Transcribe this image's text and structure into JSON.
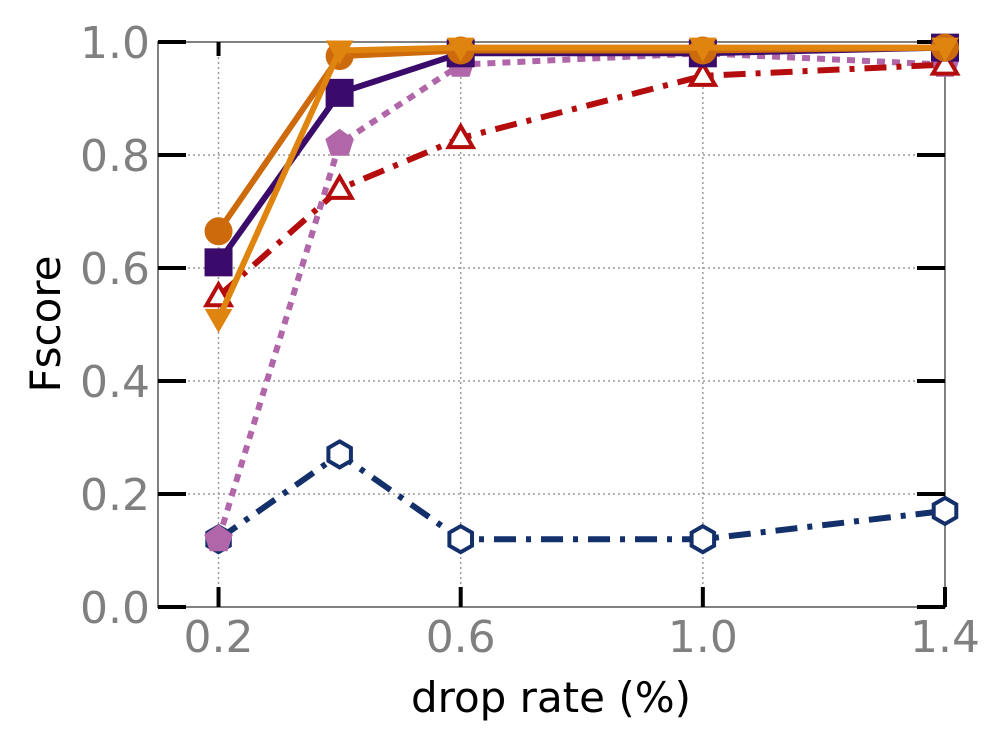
{
  "chart_data": {
    "type": "line",
    "title": "",
    "xlabel": "drop rate (%)",
    "ylabel": "Fscore",
    "xlim": [
      0.1,
      1.4
    ],
    "ylim": [
      0.0,
      1.0
    ],
    "xticks": [
      0.2,
      0.6,
      1.0,
      1.4
    ],
    "xtick_labels": [
      "0.2",
      "0.6",
      "1.0",
      "1.4"
    ],
    "yticks": [
      0.0,
      0.2,
      0.4,
      0.6,
      0.8,
      1.0
    ],
    "ytick_labels": [
      "0.0",
      "0.2",
      "0.4",
      "0.6",
      "0.8",
      "1.0"
    ],
    "grid": true,
    "legend": "none",
    "x": [
      0.2,
      0.4,
      0.6,
      1.0,
      1.4
    ],
    "series": [
      {
        "values": [
          0.12,
          0.27,
          0.12,
          0.12,
          0.17
        ],
        "color": "#13306b",
        "marker": "hexagon-open",
        "linestyle": "dashdot"
      },
      {
        "values": [
          0.12,
          0.82,
          0.96,
          0.98,
          0.96
        ],
        "color": "#b066a8",
        "marker": "pentagon",
        "linestyle": "dotted"
      },
      {
        "values": [
          0.55,
          0.74,
          0.83,
          0.94,
          0.96
        ],
        "color": "#b50d0d",
        "marker": "triangle-up-open",
        "linestyle": "dashdot"
      },
      {
        "values": [
          0.61,
          0.91,
          0.98,
          0.98,
          0.99
        ],
        "color": "#3a0b6b",
        "marker": "square",
        "linestyle": "solid"
      },
      {
        "values": [
          0.665,
          0.975,
          0.985,
          0.985,
          0.99
        ],
        "color": "#cc6a0c",
        "marker": "circle",
        "linestyle": "solid"
      },
      {
        "values": [
          0.51,
          0.985,
          0.99,
          0.99,
          0.99
        ],
        "color": "#e08410",
        "marker": "triangle-down",
        "linestyle": "solid"
      }
    ]
  }
}
